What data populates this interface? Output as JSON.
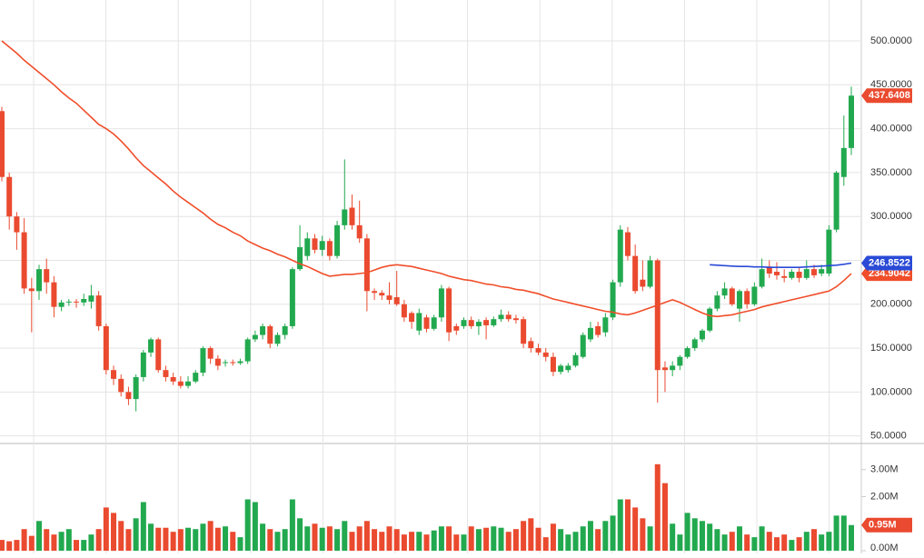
{
  "chart_data": {
    "type": "candlestick",
    "ylim": [
      42.4,
      546.6
    ],
    "yticks": [
      {
        "value": 50,
        "label": "50.0000"
      },
      {
        "value": 100,
        "label": "100.0000"
      },
      {
        "value": 150,
        "label": "150.0000"
      },
      {
        "value": 200,
        "label": "200.0000"
      },
      {
        "value": 250,
        "label": "250.0000"
      },
      {
        "value": 300,
        "label": "300.0000"
      },
      {
        "value": 350,
        "label": "350.0000"
      },
      {
        "value": 400,
        "label": "400.0000"
      },
      {
        "value": 450,
        "label": "450.0000"
      },
      {
        "value": 500,
        "label": "500.0000"
      }
    ],
    "grid": true,
    "up_color": "#22a94f",
    "down_color": "#ea4a2f",
    "open": [
      420,
      345,
      300,
      282,
      218,
      215,
      240,
      225,
      197,
      202,
      203,
      202,
      203,
      210,
      175,
      125,
      115,
      100,
      92,
      117,
      145,
      160,
      125,
      117,
      112,
      107,
      112,
      122,
      150,
      138,
      133,
      134,
      133,
      135,
      160,
      165,
      175,
      155,
      165,
      175,
      240,
      255,
      275,
      262,
      272,
      255,
      290,
      310,
      290,
      275,
      215,
      213,
      210,
      208,
      200,
      190,
      170,
      185,
      172,
      185,
      218,
      175,
      175,
      182,
      175,
      182,
      176,
      183,
      188,
      184,
      183,
      158,
      150,
      145,
      140,
      123,
      125,
      130,
      140,
      160,
      175,
      168,
      185,
      225,
      282,
      255,
      228,
      220,
      250,
      128,
      125,
      130,
      140,
      150,
      160,
      170,
      195,
      210,
      218,
      195,
      215,
      200,
      220,
      243,
      237,
      232,
      230,
      237,
      230,
      240,
      235,
      235,
      285,
      345,
      378
    ],
    "high": [
      425,
      350,
      305,
      298,
      230,
      245,
      252,
      232,
      205,
      206,
      206,
      212,
      222,
      215,
      178,
      130,
      120,
      106,
      120,
      148,
      162,
      162,
      130,
      122,
      118,
      118,
      125,
      152,
      152,
      142,
      137,
      137,
      138,
      162,
      170,
      178,
      177,
      168,
      178,
      242,
      290,
      282,
      280,
      278,
      275,
      295,
      365,
      325,
      318,
      280,
      218,
      216,
      225,
      238,
      205,
      192,
      195,
      188,
      188,
      222,
      220,
      178,
      185,
      186,
      183,
      185,
      186,
      194,
      192,
      188,
      186,
      162,
      155,
      150,
      145,
      132,
      133,
      145,
      168,
      180,
      180,
      190,
      228,
      290,
      288,
      268,
      250,
      255,
      252,
      135,
      135,
      142,
      152,
      162,
      172,
      197,
      215,
      225,
      220,
      217,
      218,
      225,
      252,
      250,
      248,
      240,
      240,
      242,
      250,
      245,
      245,
      290,
      352,
      415,
      448
    ],
    "low": [
      340,
      285,
      262,
      212,
      168,
      205,
      212,
      185,
      192,
      198,
      196,
      198,
      195,
      170,
      120,
      108,
      95,
      85,
      78,
      112,
      140,
      122,
      112,
      108,
      104,
      104,
      110,
      118,
      132,
      125,
      129,
      130,
      131,
      132,
      157,
      160,
      150,
      152,
      160,
      172,
      238,
      250,
      258,
      255,
      250,
      252,
      285,
      285,
      270,
      192,
      205,
      205,
      200,
      198,
      180,
      172,
      165,
      168,
      170,
      180,
      158,
      165,
      172,
      172,
      165,
      160,
      174,
      180,
      180,
      178,
      150,
      145,
      142,
      135,
      118,
      120,
      122,
      128,
      138,
      157,
      162,
      163,
      182,
      220,
      250,
      212,
      215,
      218,
      88,
      100,
      118,
      125,
      138,
      147,
      157,
      168,
      192,
      206,
      198,
      180,
      195,
      198,
      218,
      230,
      228,
      225,
      228,
      225,
      228,
      230,
      232,
      232,
      282,
      335,
      370
    ],
    "close": [
      345,
      300,
      282,
      218,
      215,
      240,
      225,
      197,
      202,
      203,
      202,
      206,
      210,
      175,
      125,
      115,
      100,
      92,
      117,
      145,
      160,
      125,
      117,
      112,
      107,
      112,
      122,
      150,
      138,
      130,
      134,
      133,
      135,
      160,
      165,
      175,
      155,
      165,
      175,
      240,
      265,
      275,
      262,
      272,
      255,
      290,
      308,
      290,
      275,
      215,
      213,
      210,
      205,
      200,
      185,
      180,
      190,
      172,
      185,
      218,
      168,
      170,
      182,
      175,
      180,
      176,
      183,
      188,
      183,
      182,
      155,
      150,
      145,
      140,
      123,
      130,
      130,
      142,
      165,
      173,
      165,
      185,
      225,
      285,
      255,
      215,
      220,
      250,
      125,
      125,
      130,
      140,
      150,
      160,
      170,
      195,
      210,
      218,
      200,
      215,
      200,
      220,
      240,
      235,
      233,
      230,
      237,
      230,
      240,
      233,
      240,
      285,
      350,
      378,
      437.6408
    ],
    "lines": [
      {
        "color": "#f04e2a",
        "values": [
          500,
          493,
          486,
          478,
          471,
          464,
          457,
          450,
          442,
          435,
          429,
          421,
          413,
          405,
          400,
          394,
          386,
          377,
          367,
          358,
          351,
          344,
          337,
          329,
          322,
          316,
          310,
          304,
          297,
          291,
          287,
          282,
          278,
          272,
          268,
          264,
          261,
          257,
          254,
          250,
          246,
          243,
          239,
          235,
          232,
          233,
          234,
          234,
          235,
          236,
          239,
          242,
          244,
          245,
          244,
          243,
          241,
          239,
          237,
          235,
          232,
          230,
          228,
          227,
          225,
          223,
          222,
          220,
          219,
          217,
          216,
          214,
          212,
          209,
          206,
          204,
          202,
          200,
          198,
          196,
          194,
          192,
          191,
          189,
          188,
          190,
          193,
          196,
          199,
          202,
          205,
          202,
          198,
          194,
          190,
          187,
          186,
          187,
          188,
          190,
          192,
          194,
          197,
          199,
          201,
          203,
          205,
          207,
          209,
          211,
          213,
          215,
          220,
          227,
          234.9042
        ]
      },
      {
        "color": "#2a4ad6",
        "values": [
          null,
          null,
          null,
          null,
          null,
          null,
          null,
          null,
          null,
          null,
          null,
          null,
          null,
          null,
          null,
          null,
          null,
          null,
          null,
          null,
          null,
          null,
          null,
          null,
          null,
          null,
          null,
          null,
          null,
          null,
          null,
          null,
          null,
          null,
          null,
          null,
          null,
          null,
          null,
          null,
          null,
          null,
          null,
          null,
          null,
          null,
          null,
          null,
          null,
          null,
          null,
          null,
          null,
          null,
          null,
          null,
          null,
          null,
          null,
          null,
          null,
          null,
          null,
          null,
          null,
          null,
          null,
          null,
          null,
          null,
          null,
          null,
          null,
          null,
          null,
          null,
          null,
          null,
          null,
          null,
          null,
          null,
          null,
          null,
          null,
          null,
          null,
          null,
          null,
          null,
          null,
          null,
          null,
          null,
          null,
          245,
          244.5,
          244,
          243.5,
          243,
          243,
          242.5,
          242.5,
          242,
          242,
          242,
          242,
          242,
          242.5,
          243,
          243.5,
          244,
          244.5,
          245.5,
          246.8522
        ]
      }
    ],
    "volume": {
      "values": [
        0.4,
        0.35,
        0.4,
        0.8,
        0.55,
        1.1,
        0.8,
        0.6,
        0.7,
        0.8,
        0.4,
        0.4,
        0.6,
        0.8,
        1.6,
        1.4,
        1.1,
        0.8,
        1.2,
        1.8,
        1.0,
        0.85,
        0.85,
        0.7,
        0.8,
        0.85,
        0.8,
        1.0,
        1.1,
        0.85,
        0.9,
        0.7,
        0.5,
        1.9,
        1.8,
        1.0,
        0.8,
        0.7,
        0.8,
        1.9,
        1.2,
        0.9,
        1.0,
        0.85,
        0.9,
        0.8,
        1.1,
        0.7,
        0.9,
        1.1,
        0.8,
        0.7,
        0.9,
        0.8,
        0.6,
        0.7,
        0.7,
        0.6,
        0.75,
        0.9,
        0.9,
        0.6,
        0.6,
        0.9,
        0.8,
        0.85,
        0.9,
        0.85,
        0.7,
        0.8,
        1.1,
        1.2,
        0.85,
        0.5,
        1.0,
        0.8,
        0.6,
        0.7,
        0.9,
        1.1,
        0.8,
        1.1,
        1.3,
        1.9,
        1.9,
        1.6,
        1.2,
        0.9,
        3.2,
        2.5,
        1.0,
        0.6,
        1.4,
        1.2,
        1.1,
        1.0,
        0.8,
        0.6,
        0.7,
        0.9,
        0.6,
        0.5,
        0.9,
        0.7,
        0.5,
        0.6,
        0.4,
        0.5,
        0.7,
        0.8,
        0.6,
        0.7,
        1.3,
        1.3,
        0.95
      ],
      "ylim": [
        0,
        3.9
      ],
      "yticks": [
        {
          "value": 0,
          "label": "0.00M"
        },
        {
          "value": 2,
          "label": "2.00M"
        },
        {
          "value": 3,
          "label": "3.00M"
        }
      ],
      "last_label": "0.95M"
    }
  }
}
